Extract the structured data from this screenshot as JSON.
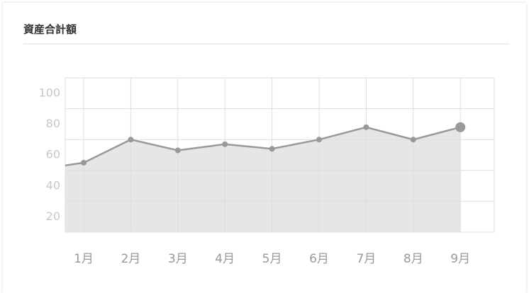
{
  "chart_data": {
    "type": "area",
    "title": "資産合計額",
    "categories": [
      "1月",
      "2月",
      "3月",
      "4月",
      "5月",
      "6月",
      "7月",
      "8月",
      "9月"
    ],
    "values": [
      45,
      60,
      53,
      57,
      54,
      60,
      68,
      60,
      68
    ],
    "color": "#999999",
    "fill": "#e6e6e6",
    "ylim": [
      0,
      100
    ],
    "yticks": [
      20,
      40,
      60,
      80,
      100
    ],
    "grid": true
  }
}
